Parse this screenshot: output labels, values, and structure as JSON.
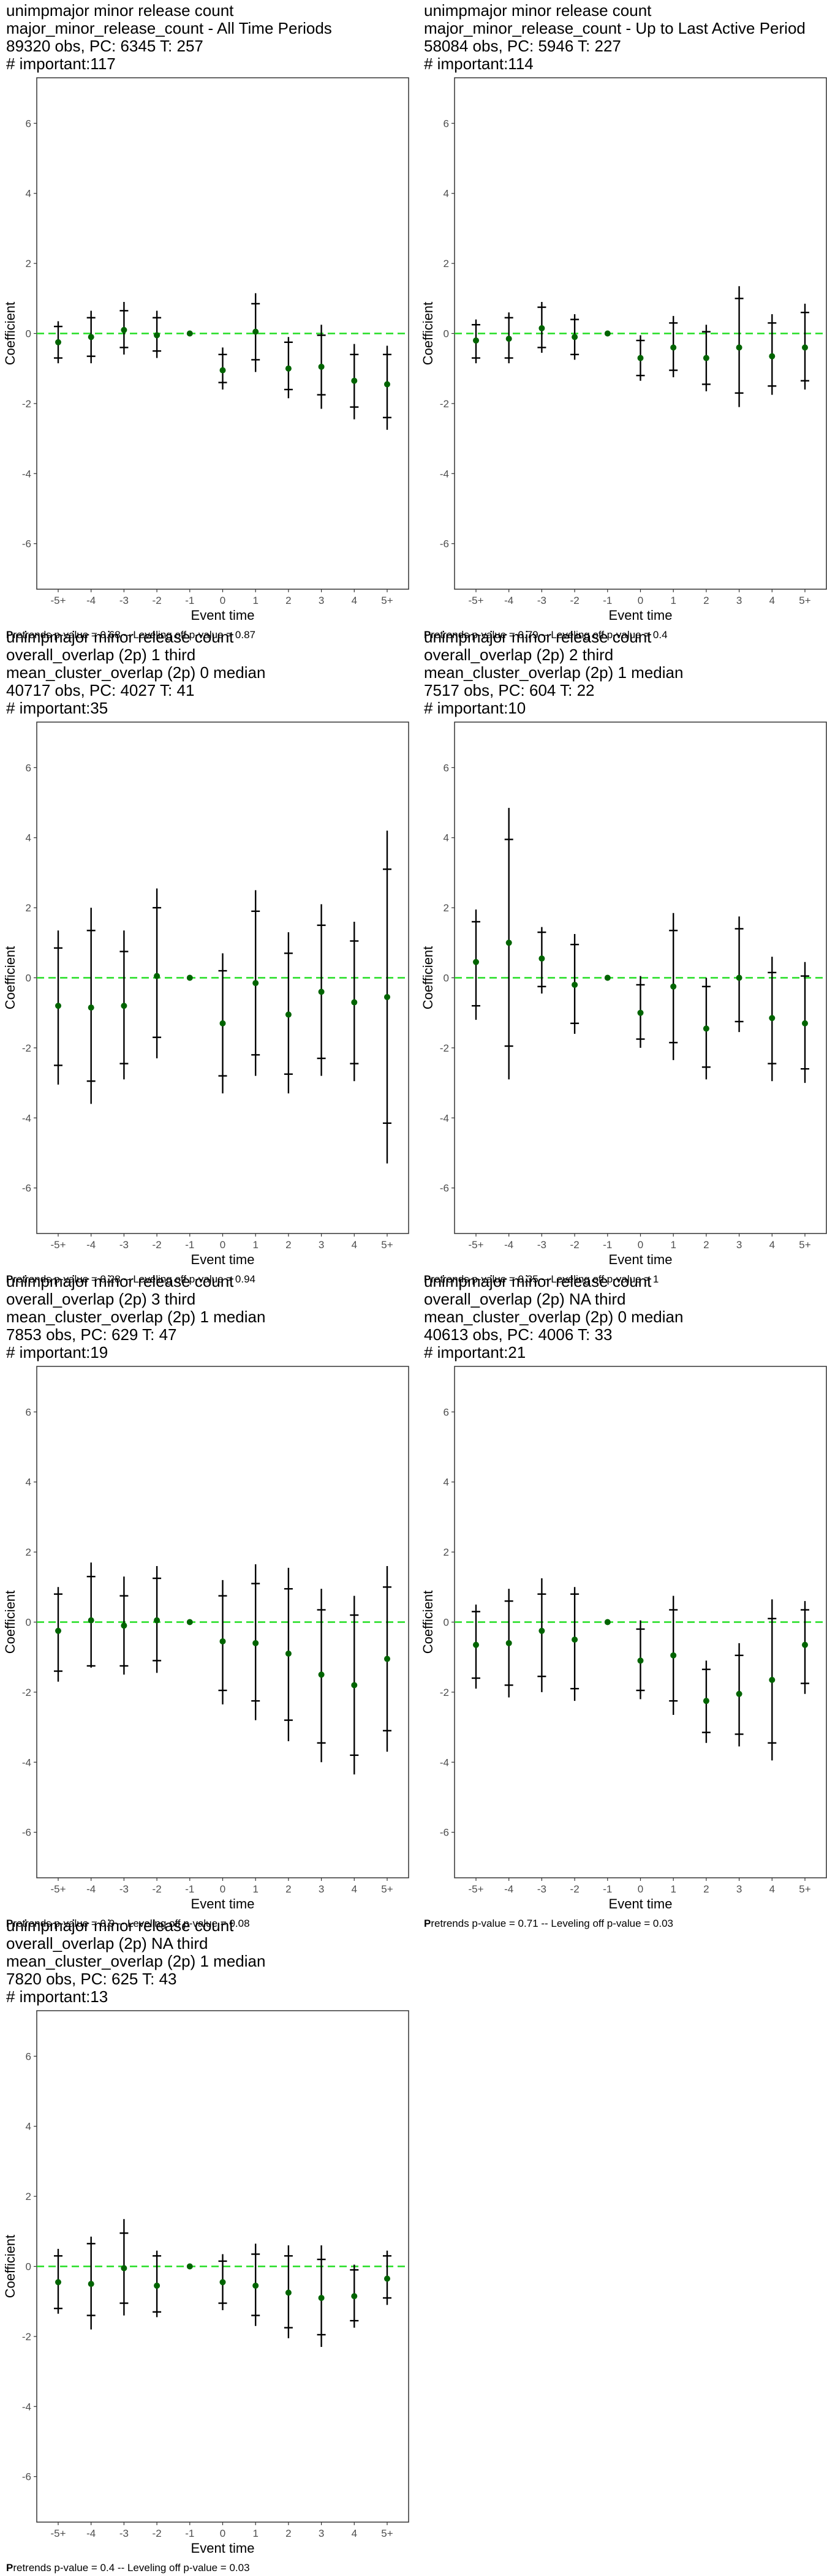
{
  "chart_data": [
    {
      "type": "errorbar",
      "title_lines": [
        "unimpmajor minor release count",
        "major_minor_release_count - All Time Periods",
        "89320 obs, PC: 6345 T: 257",
        "# important:117"
      ],
      "xlabel": "Event time",
      "ylabel": "Coefficient",
      "categories": [
        "-5+",
        "-4",
        "-3",
        "-2",
        "-1",
        "0",
        "1",
        "2",
        "3",
        "4",
        "5+"
      ],
      "ylim": [
        -7.3,
        7.3
      ],
      "yticks": [
        -6,
        -4,
        -2,
        0,
        2,
        4,
        6
      ],
      "reference_line": 0,
      "series": [
        {
          "estimates": [
            -0.25,
            -0.1,
            0.1,
            -0.05,
            0,
            -1.05,
            0.05,
            -1.0,
            -0.95,
            -1.35,
            -1.45
          ],
          "ci_outer_lower": [
            -0.85,
            -0.85,
            -0.6,
            -0.7,
            0,
            -1.6,
            -1.1,
            -1.85,
            -2.15,
            -2.45,
            -2.75
          ],
          "ci_outer_upper": [
            0.35,
            0.65,
            0.9,
            0.65,
            0,
            -0.4,
            1.15,
            -0.1,
            0.25,
            -0.3,
            -0.35
          ],
          "ci_inner_lower": [
            -0.7,
            -0.65,
            -0.4,
            -0.5,
            0,
            -1.4,
            -0.75,
            -1.6,
            -1.75,
            -2.1,
            -2.4
          ],
          "ci_inner_upper": [
            0.2,
            0.45,
            0.65,
            0.45,
            0,
            -0.6,
            0.85,
            -0.25,
            -0.05,
            -0.6,
            -0.6
          ]
        }
      ],
      "footnote": [
        "P",
        "retrends p-value = 0.68 -- Leveling off p-value = 0.87"
      ]
    },
    {
      "type": "errorbar",
      "title_lines": [
        "unimpmajor minor release count",
        "major_minor_release_count - Up to Last Active Period",
        "58084 obs, PC: 5946 T: 227",
        "# important:114"
      ],
      "xlabel": "Event time",
      "ylabel": "Coefficient",
      "categories": [
        "-5+",
        "-4",
        "-3",
        "-2",
        "-1",
        "0",
        "1",
        "2",
        "3",
        "4",
        "5+"
      ],
      "ylim": [
        -7.3,
        7.3
      ],
      "yticks": [
        -6,
        -4,
        -2,
        0,
        2,
        4,
        6
      ],
      "reference_line": 0,
      "series": [
        {
          "estimates": [
            -0.2,
            -0.15,
            0.15,
            -0.1,
            0,
            -0.7,
            -0.4,
            -0.7,
            -0.4,
            -0.65,
            -0.4
          ],
          "ci_outer_lower": [
            -0.85,
            -0.85,
            -0.55,
            -0.75,
            0,
            -1.35,
            -1.25,
            -1.65,
            -2.1,
            -1.75,
            -1.6
          ],
          "ci_outer_upper": [
            0.4,
            0.6,
            0.9,
            0.55,
            0,
            -0.05,
            0.5,
            0.25,
            1.35,
            0.55,
            0.85
          ],
          "ci_inner_lower": [
            -0.7,
            -0.7,
            -0.4,
            -0.6,
            0,
            -1.2,
            -1.05,
            -1.45,
            -1.7,
            -1.5,
            -1.35
          ],
          "ci_inner_upper": [
            0.25,
            0.45,
            0.75,
            0.4,
            0,
            -0.2,
            0.3,
            0.05,
            1.0,
            0.3,
            0.6
          ]
        }
      ],
      "footnote": [
        "P",
        "retrends p-value = 0.79 -- Leveling off p-value = 0.4"
      ]
    },
    {
      "type": "errorbar",
      "title_lines": [
        "unimpmajor minor release count",
        "overall_overlap (2p) 1 third",
        "mean_cluster_overlap (2p) 0 median",
        "40717 obs, PC: 4027 T: 41",
        "# important:35"
      ],
      "xlabel": "Event time",
      "ylabel": "Coefficient",
      "categories": [
        "-5+",
        "-4",
        "-3",
        "-2",
        "-1",
        "0",
        "1",
        "2",
        "3",
        "4",
        "5+"
      ],
      "ylim": [
        -7.3,
        7.3
      ],
      "yticks": [
        -6,
        -4,
        -2,
        0,
        2,
        4,
        6
      ],
      "reference_line": 0,
      "series": [
        {
          "estimates": [
            -0.8,
            -0.85,
            -0.8,
            0.05,
            0,
            -1.3,
            -0.15,
            -1.05,
            -0.4,
            -0.7,
            -0.55
          ],
          "ci_outer_lower": [
            -3.05,
            -3.6,
            -2.9,
            -2.3,
            0,
            -3.3,
            -2.8,
            -3.3,
            -2.8,
            -2.95,
            -5.3
          ],
          "ci_outer_upper": [
            1.35,
            2.0,
            1.35,
            2.55,
            0,
            0.7,
            2.5,
            1.3,
            2.1,
            1.6,
            4.2
          ],
          "ci_inner_lower": [
            -2.5,
            -2.95,
            -2.45,
            -1.7,
            0,
            -2.8,
            -2.2,
            -2.75,
            -2.3,
            -2.45,
            -4.15
          ],
          "ci_inner_upper": [
            0.85,
            1.35,
            0.75,
            2.0,
            0,
            0.2,
            1.9,
            0.7,
            1.5,
            1.05,
            3.1
          ]
        }
      ],
      "footnote": [
        "P",
        "retrends p-value = 0.28 -- Leveling off p-value = 0.94"
      ]
    },
    {
      "type": "errorbar",
      "title_lines": [
        "unimpmajor minor release count",
        "overall_overlap (2p) 2 third",
        "mean_cluster_overlap (2p) 1 median",
        "7517 obs, PC: 604 T: 22",
        "# important:10"
      ],
      "xlabel": "Event time",
      "ylabel": "Coefficient",
      "categories": [
        "-5+",
        "-4",
        "-3",
        "-2",
        "-1",
        "0",
        "1",
        "2",
        "3",
        "4",
        "5+"
      ],
      "ylim": [
        -7.3,
        7.3
      ],
      "yticks": [
        -6,
        -4,
        -2,
        0,
        2,
        4,
        6
      ],
      "reference_line": 0,
      "series": [
        {
          "estimates": [
            0.45,
            1.0,
            0.55,
            -0.2,
            0,
            -1.0,
            -0.25,
            -1.45,
            0.0,
            -1.15,
            -1.3
          ],
          "ci_outer_lower": [
            -1.2,
            -2.9,
            -0.45,
            -1.6,
            0,
            -2.0,
            -2.35,
            -2.9,
            -1.55,
            -2.95,
            -3.0
          ],
          "ci_outer_upper": [
            1.95,
            4.85,
            1.45,
            1.25,
            0,
            0.05,
            1.85,
            0.0,
            1.75,
            0.6,
            0.45
          ],
          "ci_inner_lower": [
            -0.8,
            -1.95,
            -0.25,
            -1.3,
            0,
            -1.75,
            -1.85,
            -2.55,
            -1.25,
            -2.45,
            -2.6
          ],
          "ci_inner_upper": [
            1.6,
            3.95,
            1.3,
            0.95,
            0,
            -0.2,
            1.35,
            -0.25,
            1.4,
            0.15,
            0.05
          ]
        }
      ],
      "footnote": [
        "P",
        "retrends p-value = 0.35 -- Leveling off p-value = 1"
      ]
    },
    {
      "type": "errorbar",
      "title_lines": [
        "unimpmajor minor release count",
        "overall_overlap (2p) 3 third",
        "mean_cluster_overlap (2p) 1 median",
        "7853 obs, PC: 629 T: 47",
        "# important:19"
      ],
      "xlabel": "Event time",
      "ylabel": "Coefficient",
      "categories": [
        "-5+",
        "-4",
        "-3",
        "-2",
        "-1",
        "0",
        "1",
        "2",
        "3",
        "4",
        "5+"
      ],
      "ylim": [
        -7.3,
        7.3
      ],
      "yticks": [
        -6,
        -4,
        -2,
        0,
        2,
        4,
        6
      ],
      "reference_line": 0,
      "series": [
        {
          "estimates": [
            -0.25,
            0.05,
            -0.1,
            0.05,
            0,
            -0.55,
            -0.6,
            -0.9,
            -1.5,
            -1.8,
            -1.05
          ],
          "ci_outer_lower": [
            -1.7,
            -1.3,
            -1.5,
            -1.45,
            0,
            -2.35,
            -2.8,
            -3.4,
            -4.0,
            -4.35,
            -3.7
          ],
          "ci_outer_upper": [
            1.0,
            1.7,
            1.3,
            1.6,
            0,
            1.2,
            1.65,
            1.55,
            0.95,
            0.75,
            1.6
          ],
          "ci_inner_lower": [
            -1.4,
            -1.25,
            -1.25,
            -1.1,
            0,
            -1.95,
            -2.25,
            -2.8,
            -3.45,
            -3.8,
            -3.1
          ],
          "ci_inner_upper": [
            0.8,
            1.3,
            0.75,
            1.25,
            0,
            0.75,
            1.1,
            0.95,
            0.35,
            0.2,
            1.0
          ]
        }
      ],
      "footnote": [
        "P",
        "retrends p-value = 0.9 -- Leveling off p-value = 0.08"
      ]
    },
    {
      "type": "errorbar",
      "title_lines": [
        "unimpmajor minor release count",
        "overall_overlap (2p) NA third",
        "mean_cluster_overlap (2p) 0 median",
        "40613 obs, PC: 4006 T: 33",
        "# important:21"
      ],
      "xlabel": "Event time",
      "ylabel": "Coefficient",
      "categories": [
        "-5+",
        "-4",
        "-3",
        "-2",
        "-1",
        "0",
        "1",
        "2",
        "3",
        "4",
        "5+"
      ],
      "ylim": [
        -7.3,
        7.3
      ],
      "yticks": [
        -6,
        -4,
        -2,
        0,
        2,
        4,
        6
      ],
      "reference_line": 0,
      "series": [
        {
          "estimates": [
            -0.65,
            -0.6,
            -0.25,
            -0.5,
            0,
            -1.1,
            -0.95,
            -2.25,
            -2.05,
            -1.65,
            -0.65
          ],
          "ci_outer_lower": [
            -1.9,
            -2.15,
            -2.0,
            -2.25,
            0,
            -2.2,
            -2.65,
            -3.45,
            -3.55,
            -3.95,
            -2.05
          ],
          "ci_outer_upper": [
            0.5,
            0.95,
            1.25,
            1.0,
            0,
            0.05,
            0.75,
            -1.1,
            -0.6,
            0.65,
            0.6
          ],
          "ci_inner_lower": [
            -1.6,
            -1.8,
            -1.55,
            -1.9,
            0,
            -1.95,
            -2.25,
            -3.15,
            -3.2,
            -3.45,
            -1.75
          ],
          "ci_inner_upper": [
            0.3,
            0.6,
            0.8,
            0.8,
            0,
            -0.2,
            0.35,
            -1.35,
            -0.95,
            0.1,
            0.35
          ]
        }
      ],
      "footnote": [
        "P",
        "retrends p-value = 0.71 -- Leveling off p-value = 0.03"
      ]
    },
    {
      "type": "errorbar",
      "title_lines": [
        "unimpmajor minor release count",
        "overall_overlap (2p) NA third",
        "mean_cluster_overlap (2p) 1 median",
        "7820 obs, PC: 625 T: 43",
        "# important:13"
      ],
      "xlabel": "Event time",
      "ylabel": "Coefficient",
      "categories": [
        "-5+",
        "-4",
        "-3",
        "-2",
        "-1",
        "0",
        "1",
        "2",
        "3",
        "4",
        "5+"
      ],
      "ylim": [
        -7.3,
        7.3
      ],
      "yticks": [
        -6,
        -4,
        -2,
        0,
        2,
        4,
        6
      ],
      "reference_line": 0,
      "series": [
        {
          "estimates": [
            -0.45,
            -0.5,
            -0.05,
            -0.55,
            0,
            -0.45,
            -0.55,
            -0.75,
            -0.9,
            -0.85,
            -0.35
          ],
          "ci_outer_lower": [
            -1.35,
            -1.8,
            -1.4,
            -1.45,
            0,
            -1.25,
            -1.7,
            -2.05,
            -2.3,
            -1.75,
            -1.1
          ],
          "ci_outer_upper": [
            0.5,
            0.85,
            1.35,
            0.45,
            0,
            0.35,
            0.65,
            0.6,
            0.6,
            0.05,
            0.45
          ],
          "ci_inner_lower": [
            -1.2,
            -1.4,
            -1.05,
            -1.3,
            0,
            -1.05,
            -1.4,
            -1.75,
            -1.95,
            -1.55,
            -0.9
          ],
          "ci_inner_upper": [
            0.3,
            0.65,
            0.95,
            0.3,
            0,
            0.15,
            0.35,
            0.3,
            0.2,
            -0.1,
            0.3
          ]
        }
      ],
      "footnote": [
        "P",
        "retrends p-value = 0.4 -- Leveling off p-value = 0.03"
      ]
    }
  ],
  "colors": {
    "point": "#006400",
    "reference_line": "#22dd22",
    "errorbar": "#000000",
    "panel_border": "#333333",
    "tick_label": "#4d4d4d"
  }
}
